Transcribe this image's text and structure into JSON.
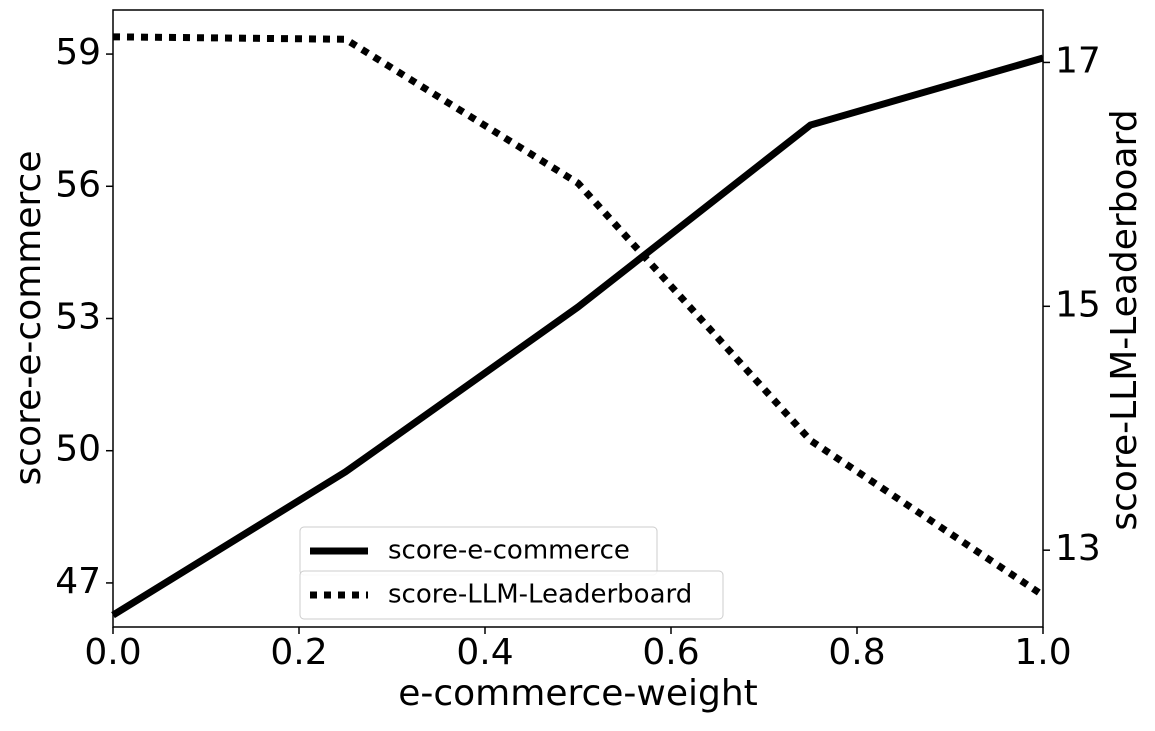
{
  "chart_data": {
    "type": "line",
    "xlabel": "e-commerce-weight",
    "ylabel": "score-e-commerce",
    "y2label": "score-LLM-Leaderboard",
    "x": [
      0,
      0.25,
      0.5,
      0.75,
      1
    ],
    "xlim": [
      0,
      1
    ],
    "xticks": [
      {
        "value": 0,
        "label": "0.0"
      },
      0.2,
      0.4,
      0.6,
      0.8,
      {
        "value": 1,
        "label": "1.0"
      }
    ],
    "ylim": [
      46,
      60
    ],
    "yticks": [
      47,
      50,
      53,
      56,
      59
    ],
    "y2lim": [
      12.37,
      17.43
    ],
    "y2ticks": [
      13,
      15,
      17
    ],
    "legend": "lower center",
    "series": [
      {
        "name": "score-e-commerce",
        "color": "#000000",
        "linestyle": "solid",
        "values": [
          46.27,
          49.52,
          53.26,
          57.39,
          58.91
        ]
      },
      {
        "name": "score-LLM-Leaderboard",
        "color": "#000000",
        "linestyle": "dotted",
        "axis": "y2",
        "values": [
          17.21,
          17.19,
          16.01,
          13.9,
          12.63
        ]
      }
    ]
  }
}
